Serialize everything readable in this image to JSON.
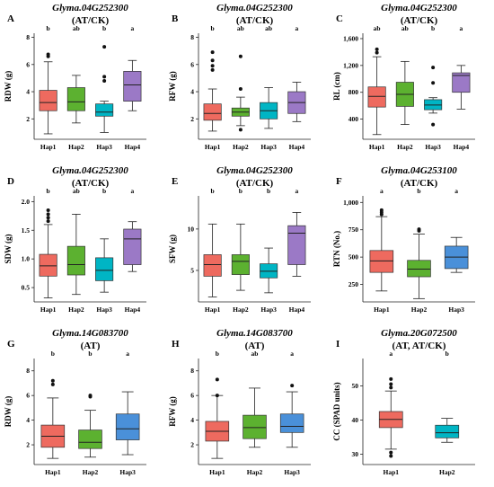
{
  "chart_data": [
    {
      "type": "box",
      "panel": "A",
      "gene": "Glyma.04G252300",
      "condition": "(AT/CK)",
      "ylabel": "RDW (g)",
      "ylim": [
        0.5,
        8.3
      ],
      "yticks": [
        2,
        4,
        6,
        8
      ],
      "yticklabels": [
        "2",
        "4",
        "6",
        "8"
      ],
      "groups": [
        {
          "name": "Hap1",
          "color": "#ee6a5f",
          "min": 0.9,
          "q1": 2.6,
          "median": 3.2,
          "q3": 4.1,
          "max": 6.2,
          "outliers": [
            6.6,
            6.75
          ],
          "letter": "b"
        },
        {
          "name": "Hap2",
          "color": "#5cb130",
          "min": 1.7,
          "q1": 2.6,
          "median": 3.25,
          "q3": 4.3,
          "max": 5.2,
          "outliers": [],
          "letter": "ab"
        },
        {
          "name": "Hap3",
          "color": "#00b5c4",
          "min": 1.0,
          "q1": 2.2,
          "median": 2.5,
          "q3": 3.1,
          "max": 3.3,
          "outliers": [
            4.8,
            5.1,
            7.3
          ],
          "letter": "b"
        },
        {
          "name": "Hap4",
          "color": "#9b79c6",
          "min": 2.6,
          "q1": 3.3,
          "median": 4.5,
          "q3": 5.5,
          "max": 6.3,
          "outliers": [],
          "letter": "a"
        }
      ]
    },
    {
      "type": "box",
      "panel": "B",
      "gene": "Glyma.04G252300",
      "condition": "(AT/CK)",
      "ylabel": "RFW (g)",
      "ylim": [
        0.5,
        8.3
      ],
      "yticks": [
        2,
        4,
        6,
        8
      ],
      "yticklabels": [
        "2",
        "4",
        "6",
        "8"
      ],
      "groups": [
        {
          "name": "Hap1",
          "color": "#ee6a5f",
          "min": 1.1,
          "q1": 1.9,
          "median": 2.4,
          "q3": 3.1,
          "max": 4.2,
          "outliers": [
            5.6,
            5.9,
            6.3,
            6.9
          ],
          "letter": "b"
        },
        {
          "name": "Hap2",
          "color": "#5cb130",
          "min": 1.5,
          "q1": 2.2,
          "median": 2.5,
          "q3": 2.8,
          "max": 3.6,
          "outliers": [
            1.2,
            4.2,
            6.6
          ],
          "letter": "ab"
        },
        {
          "name": "Hap3",
          "color": "#00b5c4",
          "min": 1.3,
          "q1": 2.0,
          "median": 2.6,
          "q3": 3.2,
          "max": 4.3,
          "outliers": [],
          "letter": "ab"
        },
        {
          "name": "Hap4",
          "color": "#9b79c6",
          "min": 1.8,
          "q1": 2.4,
          "median": 3.2,
          "q3": 4.0,
          "max": 4.7,
          "outliers": [],
          "letter": "a"
        }
      ]
    },
    {
      "type": "box",
      "panel": "C",
      "gene": "Glyma.04G252300",
      "condition": "(AT/CK)",
      "ylabel": "RL (cm)",
      "ylim": [
        100,
        1680
      ],
      "yticks": [
        400,
        800,
        1200,
        1600
      ],
      "yticklabels": [
        "400",
        "800",
        "1,200",
        "1,600"
      ],
      "groups": [
        {
          "name": "Hap1",
          "color": "#ee6a5f",
          "min": 170,
          "q1": 580,
          "median": 740,
          "q3": 880,
          "max": 1330,
          "outliers": [
            1390,
            1440
          ],
          "letter": "ab"
        },
        {
          "name": "Hap2",
          "color": "#5cb130",
          "min": 320,
          "q1": 590,
          "median": 770,
          "q3": 950,
          "max": 1260,
          "outliers": [],
          "letter": "ab"
        },
        {
          "name": "Hap3",
          "color": "#00b5c4",
          "min": 490,
          "q1": 540,
          "median": 610,
          "q3": 690,
          "max": 720,
          "outliers": [
            320,
            940,
            1170
          ],
          "letter": "b"
        },
        {
          "name": "Hap4",
          "color": "#9b79c6",
          "min": 550,
          "q1": 800,
          "median": 1050,
          "q3": 1090,
          "max": 1200,
          "outliers": [],
          "letter": "a"
        }
      ]
    },
    {
      "type": "box",
      "panel": "D",
      "gene": "Glyma.04G252300",
      "condition": "(AT/CK)",
      "ylabel": "SDW (g)",
      "ylim": [
        0.25,
        2.1
      ],
      "yticks": [
        0.5,
        1.0,
        1.5,
        2.0
      ],
      "yticklabels": [
        "0.5",
        "1.0",
        "1.5",
        "2.0"
      ],
      "groups": [
        {
          "name": "Hap1",
          "color": "#ee6a5f",
          "min": 0.32,
          "q1": 0.7,
          "median": 0.88,
          "q3": 1.08,
          "max": 1.6,
          "outliers": [
            1.66,
            1.72,
            1.78,
            1.85
          ],
          "letter": "b"
        },
        {
          "name": "Hap2",
          "color": "#5cb130",
          "min": 0.38,
          "q1": 0.72,
          "median": 0.9,
          "q3": 1.22,
          "max": 1.78,
          "outliers": [],
          "letter": "ab"
        },
        {
          "name": "Hap3",
          "color": "#00b5c4",
          "min": 0.42,
          "q1": 0.62,
          "median": 0.8,
          "q3": 1.02,
          "max": 1.35,
          "outliers": [],
          "letter": "b"
        },
        {
          "name": "Hap4",
          "color": "#9b79c6",
          "min": 0.78,
          "q1": 0.9,
          "median": 1.35,
          "q3": 1.52,
          "max": 1.65,
          "outliers": [],
          "letter": "a"
        }
      ]
    },
    {
      "type": "box",
      "panel": "E",
      "gene": "Glyma.04G252300",
      "condition": "(AT/CK)",
      "ylabel": "SFW (g)",
      "ylim": [
        1.2,
        14.0
      ],
      "yticks": [
        5,
        10
      ],
      "yticklabels": [
        "5",
        "10"
      ],
      "groups": [
        {
          "name": "Hap1",
          "color": "#ee6a5f",
          "min": 1.8,
          "q1": 4.3,
          "median": 5.7,
          "q3": 6.9,
          "max": 10.6,
          "outliers": [],
          "letter": "b"
        },
        {
          "name": "Hap2",
          "color": "#5cb130",
          "min": 2.6,
          "q1": 4.5,
          "median": 6.1,
          "q3": 6.9,
          "max": 10.6,
          "outliers": [],
          "letter": "b"
        },
        {
          "name": "Hap3",
          "color": "#00b5c4",
          "min": 2.3,
          "q1": 4.1,
          "median": 4.9,
          "q3": 5.8,
          "max": 7.7,
          "outliers": [],
          "letter": "b"
        },
        {
          "name": "Hap4",
          "color": "#9b79c6",
          "min": 4.3,
          "q1": 5.7,
          "median": 9.5,
          "q3": 10.4,
          "max": 12.0,
          "outliers": [],
          "letter": "a"
        }
      ]
    },
    {
      "type": "box",
      "panel": "F",
      "gene": "Glyma.04G253100",
      "condition": "(AT/CK)",
      "ylabel": "RTN (No.)",
      "ylim": [
        90,
        1060
      ],
      "yticks": [
        250,
        500,
        750,
        1000
      ],
      "yticklabels": [
        "250",
        "500",
        "750",
        "1,000"
      ],
      "groups": [
        {
          "name": "Hap1",
          "color": "#ee6a5f",
          "min": 190,
          "q1": 360,
          "median": 465,
          "q3": 560,
          "max": 870,
          "outliers": [
            890,
            910,
            930
          ],
          "letter": "a"
        },
        {
          "name": "Hap2",
          "color": "#5cb130",
          "min": 120,
          "q1": 320,
          "median": 390,
          "q3": 470,
          "max": 710,
          "outliers": [
            740,
            755
          ],
          "letter": "b"
        },
        {
          "name": "Hap3",
          "color": "#4a90d9",
          "min": 360,
          "q1": 395,
          "median": 500,
          "q3": 600,
          "max": 680,
          "outliers": [],
          "letter": "a"
        }
      ]
    },
    {
      "type": "box",
      "panel": "G",
      "gene": "Glyma.14G083700",
      "condition": "(AT)",
      "ylabel": "RDW (g)",
      "ylim": [
        0.4,
        9.0
      ],
      "yticks": [
        2,
        4,
        6,
        8
      ],
      "yticklabels": [
        "2",
        "4",
        "6",
        "8"
      ],
      "groups": [
        {
          "name": "Hap1",
          "color": "#ee6a5f",
          "min": 0.9,
          "q1": 1.8,
          "median": 2.7,
          "q3": 3.6,
          "max": 5.8,
          "outliers": [
            6.9,
            7.2
          ],
          "letter": "b"
        },
        {
          "name": "Hap2",
          "color": "#5cb130",
          "min": 1.0,
          "q1": 1.7,
          "median": 2.2,
          "q3": 3.2,
          "max": 4.8,
          "outliers": [
            5.9,
            6.0
          ],
          "letter": "b"
        },
        {
          "name": "Hap3",
          "color": "#4a90d9",
          "min": 1.2,
          "q1": 2.4,
          "median": 3.3,
          "q3": 4.5,
          "max": 6.3,
          "outliers": [],
          "letter": "a"
        }
      ]
    },
    {
      "type": "box",
      "panel": "H",
      "gene": "Glyma.14G083700",
      "condition": "(AT)",
      "ylabel": "RFW (g)",
      "ylim": [
        0.4,
        9.0
      ],
      "yticks": [
        2,
        4,
        6,
        8
      ],
      "yticklabels": [
        "2",
        "4",
        "6",
        "8"
      ],
      "groups": [
        {
          "name": "Hap1",
          "color": "#ee6a5f",
          "min": 0.9,
          "q1": 2.3,
          "median": 3.1,
          "q3": 3.9,
          "max": 6.0,
          "outliers": [
            6.0,
            7.3
          ],
          "letter": "b"
        },
        {
          "name": "Hap2",
          "color": "#5cb130",
          "min": 1.8,
          "q1": 2.5,
          "median": 3.4,
          "q3": 4.4,
          "max": 6.6,
          "outliers": [],
          "letter": "ab"
        },
        {
          "name": "Hap3",
          "color": "#4a90d9",
          "min": 1.8,
          "q1": 3.0,
          "median": 3.5,
          "q3": 4.5,
          "max": 6.3,
          "outliers": [
            6.8
          ],
          "letter": "a"
        }
      ]
    },
    {
      "type": "box",
      "panel": "I",
      "gene": "Glyma.20G072500",
      "condition": "(AT, AT/CK)",
      "ylabel": "CC (SPAD units)",
      "ylim": [
        27,
        58
      ],
      "yticks": [
        30,
        40,
        50
      ],
      "yticklabels": [
        "30",
        "40",
        "50"
      ],
      "groups": [
        {
          "name": "Hap1",
          "color": "#ee6a5f",
          "min": 31.5,
          "q1": 37.8,
          "median": 40.2,
          "q3": 42.5,
          "max": 48.5,
          "outliers": [
            29.5,
            30.5,
            49.5,
            50.5,
            52.0
          ],
          "letter": "a"
        },
        {
          "name": "Hap2",
          "color": "#00b5c4",
          "min": 33.5,
          "q1": 34.8,
          "median": 36.3,
          "q3": 38.5,
          "max": 40.5,
          "outliers": [],
          "letter": "b"
        }
      ]
    }
  ]
}
